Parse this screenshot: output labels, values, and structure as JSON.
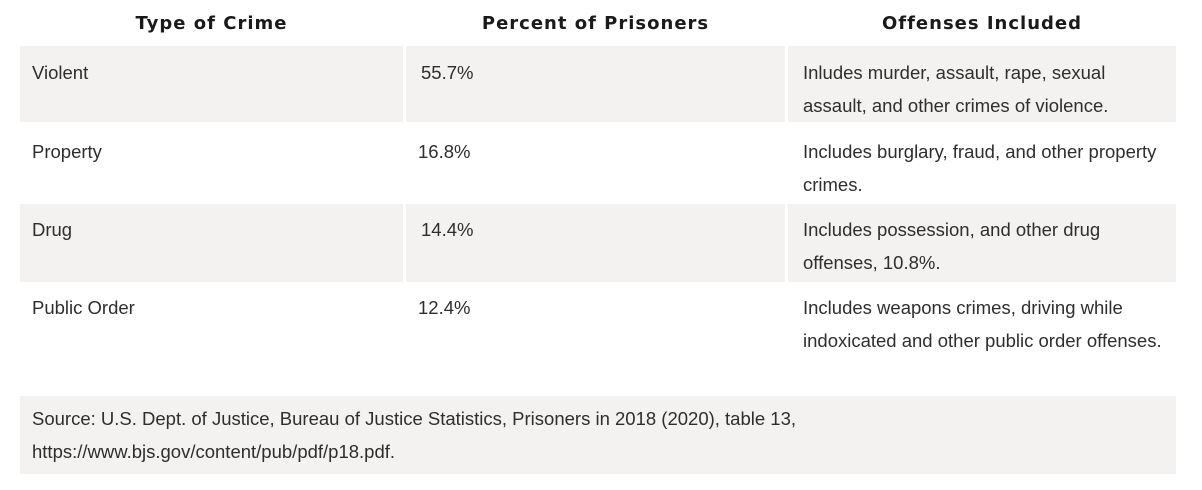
{
  "table": {
    "headers": [
      "Type of Crime",
      "Percent of Prisoners",
      "Offenses Included"
    ],
    "rows": [
      {
        "type": "Violent",
        "percent": "55.7%",
        "offenses": "Inludes murder, assault, rape, sexual assault, and other crimes of violence."
      },
      {
        "type": "Property",
        "percent": "16.8%",
        "offenses": "Includes burglary, fraud, and other property crimes."
      },
      {
        "type": "Drug",
        "percent": "14.4%",
        "offenses": "Includes possession, and other drug offenses, 10.8%."
      },
      {
        "type": "Public Order",
        "percent": "12.4%",
        "offenses": "Includes weapons crimes, driving while indoxicated and other public order offenses."
      }
    ],
    "source": "Source: U.S. Dept. of Justice, Bureau of Justice Statistics, Prisoners in 2018 (2020), table 13, https://www.bjs.gov/content/pub/pdf/p18.pdf."
  },
  "colors": {
    "row_shade": "#f3f2f1",
    "text": "#2e2e2e",
    "header_text": "#1a1a1a"
  }
}
